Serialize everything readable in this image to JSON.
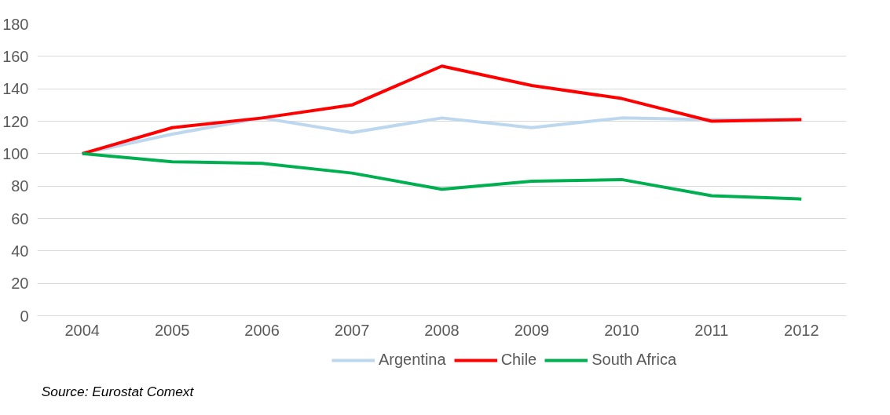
{
  "chart_data": {
    "type": "line",
    "categories": [
      "2004",
      "2005",
      "2006",
      "2007",
      "2008",
      "2009",
      "2010",
      "2011",
      "2012"
    ],
    "series": [
      {
        "name": "Argentina",
        "color": "#bdd7ee",
        "values": [
          100,
          112,
          122,
          113,
          122,
          116,
          122,
          121,
          121
        ]
      },
      {
        "name": "Chile",
        "color": "#ff0000",
        "values": [
          100,
          116,
          122,
          130,
          154,
          142,
          134,
          120,
          121
        ]
      },
      {
        "name": "South Africa",
        "color": "#00b050",
        "values": [
          100,
          95,
          94,
          88,
          78,
          83,
          84,
          74,
          72
        ]
      }
    ],
    "ylim": [
      0,
      180
    ],
    "yticks": [
      0,
      20,
      40,
      60,
      80,
      100,
      120,
      140,
      160,
      180
    ],
    "grid": "y",
    "legend": "bottom",
    "marker": "none",
    "line_style": "solid",
    "annotations": [
      "Source: Eurostat Comext"
    ]
  }
}
